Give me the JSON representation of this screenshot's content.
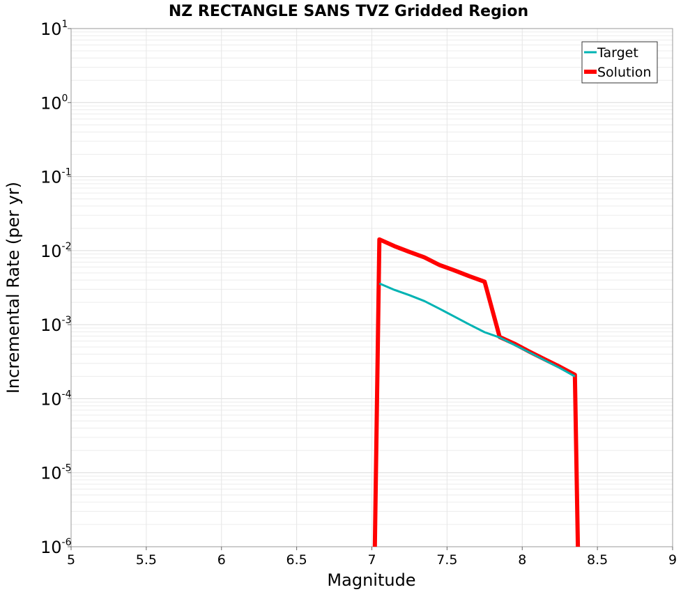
{
  "chart_data": {
    "type": "line",
    "title": "NZ RECTANGLE SANS TVZ Gridded Region",
    "xlabel": "Magnitude",
    "ylabel": "Incremental Rate (per yr)",
    "xlim": [
      5,
      9
    ],
    "ylim": [
      1e-06,
      10
    ],
    "yscale": "log",
    "grid": true,
    "legend_position": "top-right",
    "x_ticks": [
      {
        "value": 5,
        "label": "5"
      },
      {
        "value": 5.5,
        "label": "5.5"
      },
      {
        "value": 6,
        "label": "6"
      },
      {
        "value": 6.5,
        "label": "6.5"
      },
      {
        "value": 7,
        "label": "7"
      },
      {
        "value": 7.5,
        "label": "7.5"
      },
      {
        "value": 8,
        "label": "8"
      },
      {
        "value": 8.5,
        "label": "8.5"
      },
      {
        "value": 9,
        "label": "9"
      }
    ],
    "y_ticks": [
      {
        "exp": 1,
        "base": "10",
        "power": "1"
      },
      {
        "exp": 0,
        "base": "10",
        "power": "0"
      },
      {
        "exp": -1,
        "base": "10",
        "power": "-1"
      },
      {
        "exp": -2,
        "base": "10",
        "power": "-2"
      },
      {
        "exp": -3,
        "base": "10",
        "power": "-3"
      },
      {
        "exp": -4,
        "base": "10",
        "power": "-4"
      },
      {
        "exp": -5,
        "base": "10",
        "power": "-5"
      },
      {
        "exp": -6,
        "base": "10",
        "power": "-6"
      }
    ],
    "series": [
      {
        "name": "Target",
        "color": "#00b3b3",
        "x": [
          7.05,
          7.15,
          7.25,
          7.35,
          7.45,
          7.55,
          7.65,
          7.75,
          7.85,
          7.95,
          8.05,
          8.15,
          8.25,
          8.35
        ],
        "y": [
          0.0036,
          0.00295,
          0.0025,
          0.00208,
          0.00164,
          0.00128,
          0.001,
          0.00079,
          0.00067,
          0.00053,
          0.00042,
          0.00033,
          0.00026,
          0.0002
        ]
      },
      {
        "name": "Solution",
        "color": "#ff0000",
        "x": [
          7.02,
          7.05,
          7.15,
          7.25,
          7.35,
          7.45,
          7.55,
          7.65,
          7.75,
          7.85,
          7.95,
          8.05,
          8.15,
          8.25,
          8.35,
          8.37
        ],
        "y": [
          1e-06,
          0.0142,
          0.0115,
          0.0096,
          0.0081,
          0.0064,
          0.0054,
          0.0045,
          0.0038,
          0.00068,
          0.00055,
          0.00043,
          0.00034,
          0.00027,
          0.00021,
          1e-06
        ]
      }
    ]
  }
}
